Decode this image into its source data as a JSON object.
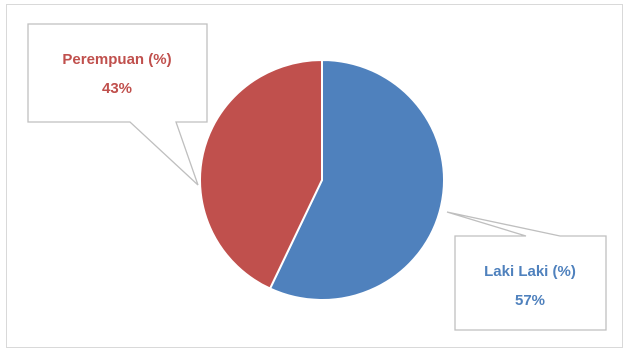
{
  "chart_data": {
    "type": "pie",
    "slices": [
      {
        "label": "Laki Laki (%)",
        "value": 57,
        "value_label": "57%",
        "color": "#4f81bd"
      },
      {
        "label": "Perempuan (%)",
        "value": 43,
        "value_label": "43%",
        "color": "#c0504d"
      }
    ],
    "start_angle": "12 o'clock",
    "direction": "clockwise",
    "labels": "callouts with leader lines",
    "legend": "none"
  }
}
